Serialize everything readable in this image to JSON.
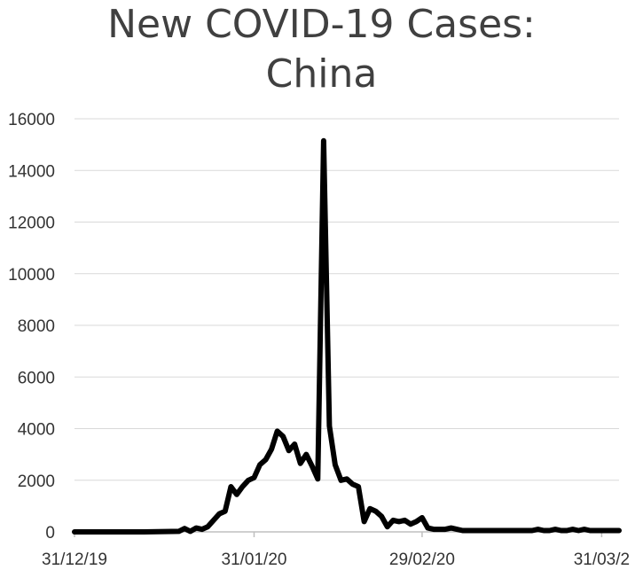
{
  "chart_data": {
    "type": "line",
    "title_lines": [
      "New COVID-19 Cases:",
      "China"
    ],
    "xlabel": "",
    "ylabel": "",
    "ylim": [
      0,
      16000
    ],
    "y_ticks": [
      0,
      2000,
      4000,
      6000,
      8000,
      10000,
      12000,
      14000,
      16000
    ],
    "x_tick_labels": [
      "31/12/19",
      "31/01/20",
      "29/02/20",
      "31/03/2"
    ],
    "x_tick_days": [
      0,
      31,
      60,
      91
    ],
    "x_range_days": [
      0,
      94
    ],
    "grid": "horizontal",
    "color": "#000000",
    "series": [
      {
        "x": [
          0,
          6,
          8,
          10,
          12,
          18,
          19,
          20,
          21,
          22,
          23,
          24,
          25,
          26,
          27,
          28,
          29,
          30,
          31,
          32,
          33,
          34,
          35,
          36,
          37,
          38,
          39,
          40,
          41,
          42,
          43,
          44,
          45,
          46,
          47,
          48,
          49,
          50,
          51,
          52,
          53,
          54,
          55,
          56,
          57,
          58,
          59,
          60,
          61,
          62,
          63,
          64,
          65,
          66,
          67,
          68,
          69,
          70,
          71,
          72,
          73,
          74,
          75,
          76,
          77,
          78,
          79,
          80,
          81,
          82,
          83,
          84,
          85,
          86,
          87,
          88,
          89,
          90,
          91,
          92,
          93,
          94
        ],
        "y": [
          0,
          0,
          0,
          0,
          0,
          20,
          130,
          20,
          150,
          100,
          200,
          450,
          700,
          800,
          1750,
          1450,
          1750,
          2000,
          2100,
          2600,
          2800,
          3200,
          3900,
          3700,
          3150,
          3400,
          2650,
          3000,
          2550,
          2050,
          15150,
          4100,
          2600,
          2000,
          2050,
          1850,
          1750,
          400,
          900,
          800,
          600,
          200,
          450,
          400,
          450,
          300,
          400,
          550,
          150,
          100,
          100,
          100,
          150,
          100,
          50,
          50,
          50,
          50,
          50,
          50,
          50,
          50,
          50,
          50,
          50,
          50,
          50,
          100,
          50,
          50,
          100,
          50,
          50,
          100,
          50,
          100,
          50,
          50,
          50,
          50,
          50,
          50
        ]
      }
    ]
  }
}
